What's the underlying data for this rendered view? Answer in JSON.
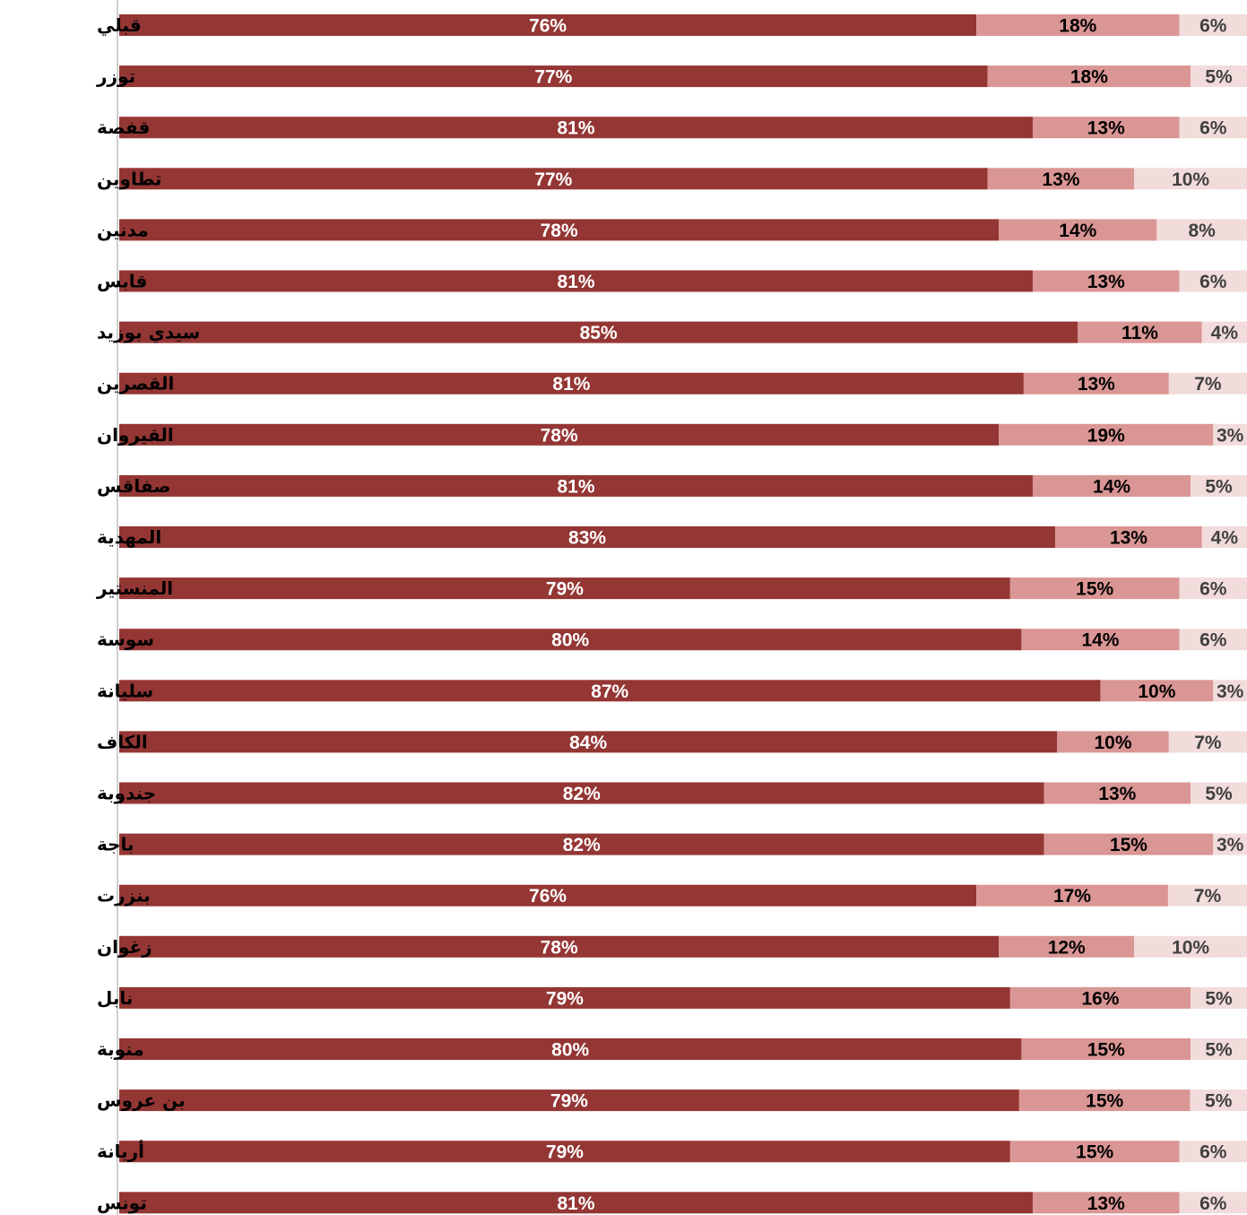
{
  "chart_data": {
    "type": "bar",
    "orientation": "horizontal",
    "stacked": "percent",
    "categories": [
      "قبلي",
      "توزر",
      "قفصة",
      "تطاوين",
      "مدنين",
      "قابس",
      "سيدي بوزيد",
      "القصرين",
      "القيروان",
      "صفاقس",
      "المهدية",
      "المنستير",
      "سوسة",
      "سليانة",
      "الكاف",
      "جندوبة",
      "باجة",
      "بنزرت",
      "زغوان",
      "نابل",
      "منوبة",
      "بن عروس",
      "أريانة",
      "تونس"
    ],
    "series": [
      {
        "color": "#943634",
        "label_color": "#ffffff",
        "values": [
          76,
          77,
          81,
          77,
          78,
          81,
          85,
          81,
          78,
          81,
          83,
          79,
          80,
          87,
          84,
          82,
          82,
          76,
          78,
          79,
          80,
          79,
          79,
          81
        ]
      },
      {
        "color": "#DA9694",
        "label_color": "#000000",
        "values": [
          18,
          18,
          13,
          13,
          14,
          13,
          11,
          13,
          19,
          14,
          13,
          15,
          14,
          10,
          10,
          13,
          15,
          17,
          12,
          16,
          15,
          15,
          15,
          13
        ]
      },
      {
        "color": "#F2DCDB",
        "label_color": "#404040",
        "values": [
          6,
          5,
          6,
          10,
          8,
          6,
          4,
          7,
          3,
          5,
          4,
          6,
          6,
          3,
          7,
          5,
          3,
          7,
          10,
          5,
          5,
          5,
          6,
          6
        ]
      }
    ],
    "value_suffix": "%",
    "xlim": [
      0,
      100
    ],
    "grid": false,
    "legend": "none"
  }
}
